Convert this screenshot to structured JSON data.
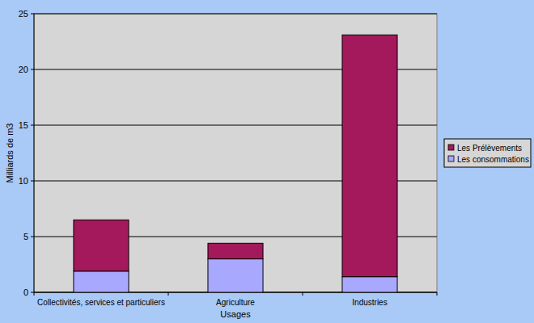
{
  "chart_data": {
    "type": "bar",
    "stacked": true,
    "x_label": "Usages",
    "y_label": "Milliards de m3",
    "categories": [
      "Collectivités, services et particuliers",
      "Agriculture",
      "Industries"
    ],
    "series": [
      {
        "name": "Les consommations",
        "color": "#a8a8ff",
        "values": [
          1.9,
          3.0,
          1.4
        ]
      },
      {
        "name": "Les Prélèvements",
        "color": "#a3195b",
        "values": [
          4.6,
          1.4,
          21.7
        ]
      }
    ],
    "ylim": [
      0,
      25
    ],
    "yticks": [
      0,
      5,
      10,
      15,
      20,
      25
    ],
    "grid": true,
    "legend": "right"
  }
}
